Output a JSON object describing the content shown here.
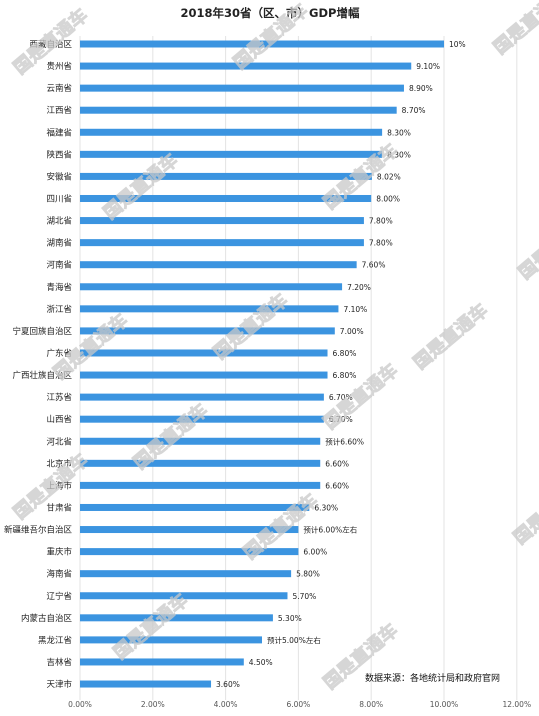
{
  "chart_data": {
    "type": "bar",
    "orientation": "horizontal",
    "title": "2018年30省（区、市）GDP增幅",
    "categories": [
      "西藏自治区",
      "贵州省",
      "云南省",
      "江西省",
      "福建省",
      "陕西省",
      "安徽省",
      "四川省",
      "湖北省",
      "湖南省",
      "河南省",
      "青海省",
      "浙江省",
      "宁夏回族自治区",
      "广东省",
      "广西壮族自治区",
      "江苏省",
      "山西省",
      "河北省",
      "北京市",
      "上海市",
      "甘肃省",
      "新疆维吾尔自治区",
      "重庆市",
      "海南省",
      "辽宁省",
      "内蒙古自治区",
      "黑龙江省",
      "吉林省",
      "天津市"
    ],
    "values": [
      10,
      9.1,
      8.9,
      8.7,
      8.3,
      8.3,
      8.02,
      8.0,
      7.8,
      7.8,
      7.6,
      7.2,
      7.1,
      7.0,
      6.8,
      6.8,
      6.7,
      6.7,
      6.6,
      6.6,
      6.6,
      6.3,
      6.0,
      6.0,
      5.8,
      5.7,
      5.3,
      5.0,
      4.5,
      3.6
    ],
    "value_labels": [
      "10%",
      "9.10%",
      "8.90%",
      "8.70%",
      "8.30%",
      "8.30%",
      "8.02%",
      "8.00%",
      "7.80%",
      "7.80%",
      "7.60%",
      "7.20%",
      "7.10%",
      "7.00%",
      "6.80%",
      "6.80%",
      "6.70%",
      "6.70%",
      "预计6.60%",
      "6.60%",
      "6.60%",
      "6.30%",
      "预计6.00%左右",
      "6.00%",
      "5.80%",
      "5.70%",
      "5.30%",
      "预计5.00%左右",
      "4.50%",
      "3.60%"
    ],
    "xlim": [
      0,
      12
    ],
    "x_ticks": [
      "0.00%",
      "2.00%",
      "4.00%",
      "6.00%",
      "8.00%",
      "10.00%",
      "12.00%"
    ],
    "grid": true,
    "bar_color": "#3b94e0",
    "source_note": "数据来源：各地统计局和政府官网",
    "watermark": "国是直通车"
  }
}
